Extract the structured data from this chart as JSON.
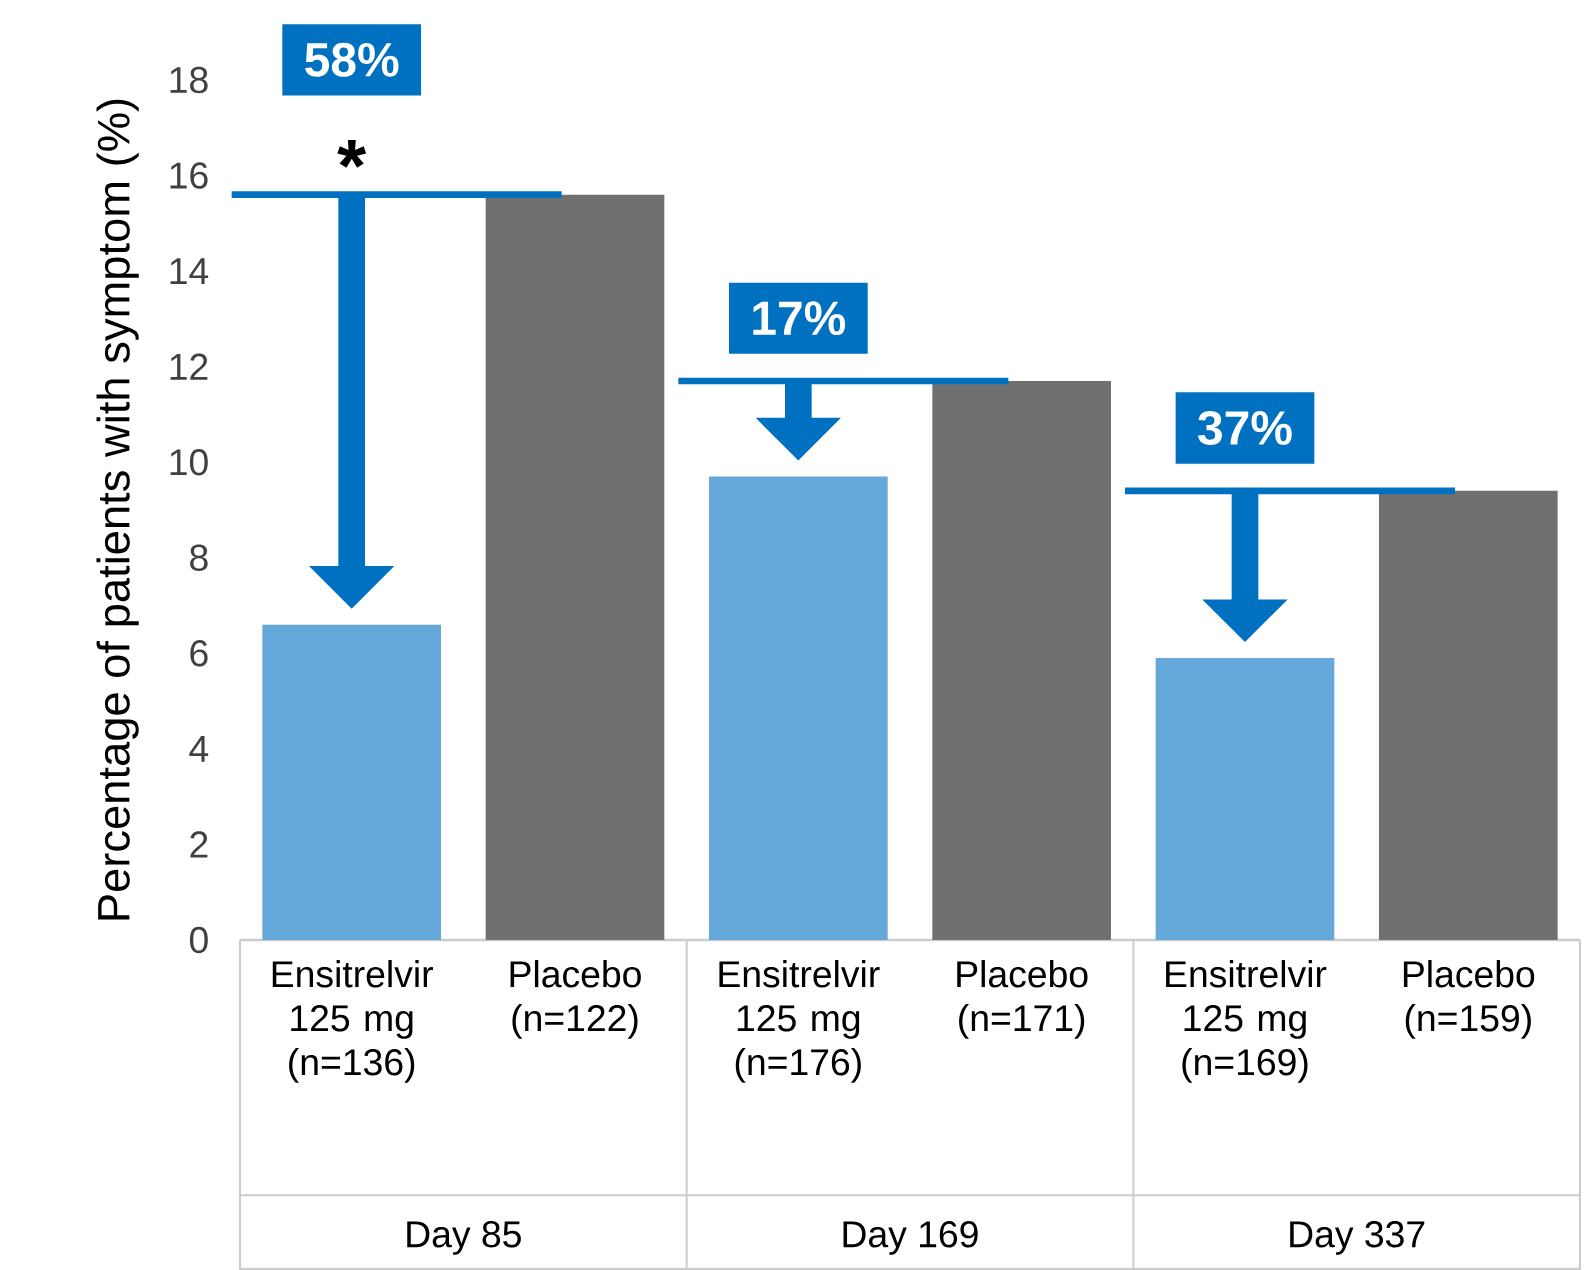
{
  "chart_data": {
    "type": "bar",
    "ylabel": "Percentage of patients with symptom (%)",
    "categories": [
      "Ensitrelvir 125 mg (n=136)",
      "Placebo (n=122)",
      "Ensitrelvir 125 mg (n=176)",
      "Placebo (n=171)",
      "Ensitrelvir 125 mg (n=169)",
      "Placebo (n=159)"
    ],
    "values": [
      6.6,
      15.6,
      9.7,
      11.7,
      5.9,
      9.4
    ],
    "colors": [
      "#65a9db",
      "#707070",
      "#65a9db",
      "#707070",
      "#65a9db",
      "#707070"
    ],
    "ylim": [
      0,
      18
    ],
    "yticks": [
      0,
      2,
      4,
      6,
      8,
      10,
      12,
      14,
      16,
      18
    ],
    "grid": false,
    "annotations": [
      "58%",
      "17%",
      "37%",
      "*",
      "Day 85",
      "Day 169",
      "Day 337"
    ]
  }
}
